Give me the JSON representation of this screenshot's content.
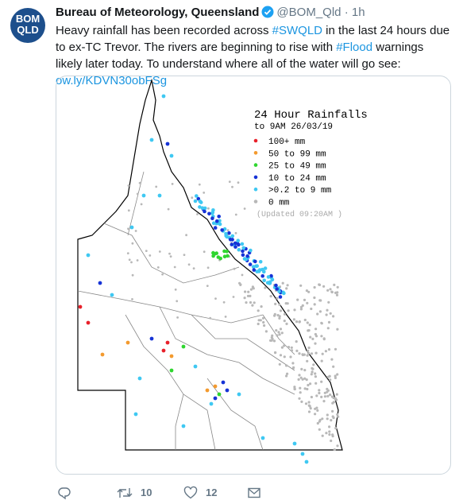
{
  "avatar": {
    "line1": "BOM",
    "line2": "QLD"
  },
  "author": {
    "name": "Bureau of Meteorology, Queensland",
    "handle": "@BOM_Qld",
    "separator": "·",
    "time": "1h"
  },
  "tweet": {
    "segments": [
      {
        "text": "Heavy rainfall has been recorded across ",
        "link": false
      },
      {
        "text": "#SWQLD",
        "link": true
      },
      {
        "text": " in the last 24 hours due to ex-TC Trevor. The rivers are beginning to rise with ",
        "link": false
      },
      {
        "text": "#Flood",
        "link": true
      },
      {
        "text": " warnings likely later today. To understand where all of the water will go see: ",
        "link": false
      },
      {
        "text": "ow.ly/KDVN30obFSg",
        "link": true
      }
    ]
  },
  "map": {
    "title": "24 Hour Rainfalls",
    "subtitle": "to 9AM 26/03/19",
    "legend": [
      {
        "label": "100+ mm",
        "color": "#e8202a"
      },
      {
        "label": "50  to 99 mm",
        "color": "#f39a2e"
      },
      {
        "label": "25  to 49 mm",
        "color": "#2fd62f"
      },
      {
        "label": "10  to 24 mm",
        "color": "#1633d6"
      },
      {
        "label": ">0.2 to 9 mm",
        "color": "#3fc8f2"
      },
      {
        "label": "0 mm",
        "color": "#b8b8b8"
      }
    ],
    "updated": "(Updated 09:20AM  )"
  },
  "actions": {
    "retweets": 10,
    "likes": 12
  }
}
